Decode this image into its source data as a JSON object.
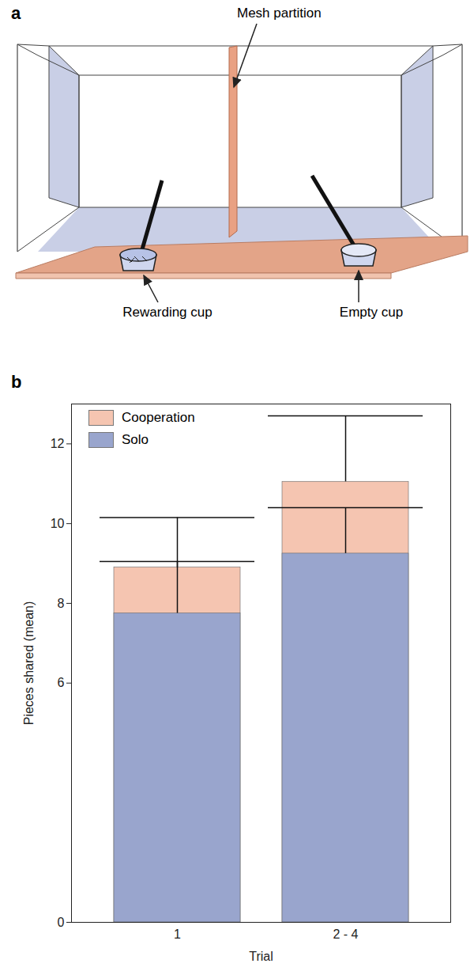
{
  "diagram": {
    "panel_label": "a",
    "labels": {
      "partition": "Mesh partition",
      "reward": "Rewarding cup",
      "empty": "Empty cup"
    }
  },
  "chart_data": {
    "panel_label": "b",
    "type": "bar",
    "x_label": "Trial",
    "y_label": "Pieces shared (mean)",
    "categories": [
      "1",
      "2 - 4"
    ],
    "series": [
      {
        "name": "Cooperation",
        "color": "#f5c5b1",
        "values": [
          8.9,
          11.05
        ],
        "error": [
          1.25,
          1.65
        ]
      },
      {
        "name": "Solo",
        "color": "#99a5cd",
        "values": [
          7.75,
          9.25
        ],
        "error": [
          1.3,
          1.15
        ]
      }
    ],
    "ylim": [
      0,
      13
    ],
    "yticks": [
      0,
      6,
      8,
      10,
      12
    ],
    "grid": false,
    "legend": "top-left"
  }
}
